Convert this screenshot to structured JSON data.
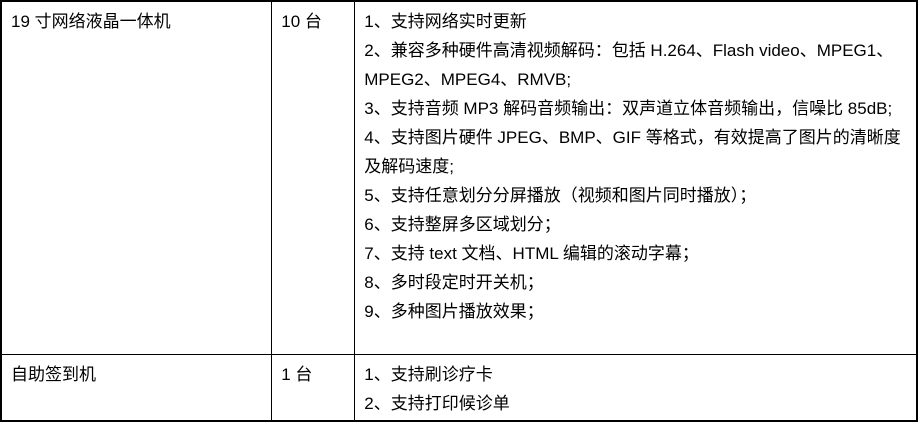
{
  "table": {
    "rows": [
      {
        "device": "19 寸网络液晶一体机",
        "quantity": "10 台",
        "features": [
          "1、支持网络实时更新",
          "2、兼容多种硬件高清视频解码：包括 H.264、Flash video、MPEG1、MPEG2、MPEG4、RMVB;",
          "3、支持音频 MP3 解码音频输出：双声道立体音频输出，信噪比 85dB;",
          "4、支持图片硬件 JPEG、BMP、GIF 等格式，有效提高了图片的清晰度及解码速度;",
          "5、支持任意划分分屏播放（视频和图片同时播放）；",
          "6、支持整屏多区域划分；",
          "7、支持 text 文档、HTML 编辑的滚动字幕；",
          "8、多时段定时开关机；",
          "9、多种图片播放效果；"
        ]
      },
      {
        "device": "自助签到机",
        "quantity": "1 台",
        "features": [
          "1、支持刷诊疗卡",
          "2、支持打印候诊单"
        ]
      }
    ]
  },
  "colors": {
    "border": "#000000",
    "text": "#000000",
    "background": "#ffffff"
  }
}
